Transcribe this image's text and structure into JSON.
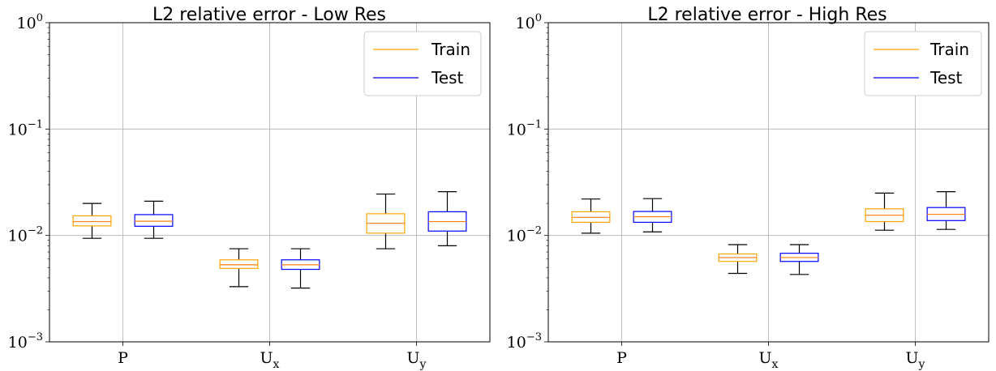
{
  "chart_data": [
    {
      "type": "box",
      "title": "L2 relative error - Low Res",
      "categories": [
        "P",
        "U_x",
        "U_y"
      ],
      "scale": "log",
      "ylim": [
        0.001,
        1
      ],
      "y_ticks": [
        {
          "value": 0.001,
          "base": "10",
          "exp": "−3"
        },
        {
          "value": 0.01,
          "base": "10",
          "exp": "−2"
        },
        {
          "value": 0.1,
          "base": "10",
          "exp": "−1"
        },
        {
          "value": 1,
          "base": "10",
          "exp": "0"
        }
      ],
      "grid": true,
      "legend_position": "top-right",
      "series": [
        {
          "name": "Train",
          "color": "#ffa500",
          "boxes": [
            {
              "whislo": 0.0094,
              "q1": 0.0123,
              "med": 0.0135,
              "q3": 0.0153,
              "whishi": 0.02
            },
            {
              "whislo": 0.0033,
              "q1": 0.0049,
              "med": 0.0053,
              "q3": 0.0059,
              "whishi": 0.0075
            },
            {
              "whislo": 0.0075,
              "q1": 0.0105,
              "med": 0.013,
              "q3": 0.016,
              "whishi": 0.0245
            }
          ]
        },
        {
          "name": "Test",
          "color": "#0000ff",
          "boxes": [
            {
              "whislo": 0.0094,
              "q1": 0.0122,
              "med": 0.0136,
              "q3": 0.0157,
              "whishi": 0.021
            },
            {
              "whislo": 0.0032,
              "q1": 0.0048,
              "med": 0.0053,
              "q3": 0.0059,
              "whishi": 0.0075
            },
            {
              "whislo": 0.008,
              "q1": 0.011,
              "med": 0.0135,
              "q3": 0.0167,
              "whishi": 0.0258
            }
          ]
        }
      ]
    },
    {
      "type": "box",
      "title": "L2 relative error - High Res",
      "categories": [
        "P",
        "U_x",
        "U_y"
      ],
      "scale": "log",
      "ylim": [
        0.001,
        1
      ],
      "y_ticks": [
        {
          "value": 0.001,
          "base": "10",
          "exp": "−3"
        },
        {
          "value": 0.01,
          "base": "10",
          "exp": "−2"
        },
        {
          "value": 0.1,
          "base": "10",
          "exp": "−1"
        },
        {
          "value": 1,
          "base": "10",
          "exp": "0"
        }
      ],
      "grid": true,
      "legend_position": "top-right",
      "series": [
        {
          "name": "Train",
          "color": "#ffa500",
          "boxes": [
            {
              "whislo": 0.0105,
              "q1": 0.0133,
              "med": 0.0148,
              "q3": 0.0167,
              "whishi": 0.022
            },
            {
              "whislo": 0.0044,
              "q1": 0.0057,
              "med": 0.0062,
              "q3": 0.0067,
              "whishi": 0.0082
            },
            {
              "whislo": 0.0112,
              "q1": 0.0135,
              "med": 0.0155,
              "q3": 0.0178,
              "whishi": 0.025
            }
          ]
        },
        {
          "name": "Test",
          "color": "#0000ff",
          "boxes": [
            {
              "whislo": 0.0108,
              "q1": 0.0133,
              "med": 0.015,
              "q3": 0.0168,
              "whishi": 0.0222
            },
            {
              "whislo": 0.0043,
              "q1": 0.0057,
              "med": 0.0062,
              "q3": 0.0068,
              "whishi": 0.0082
            },
            {
              "whislo": 0.0114,
              "q1": 0.0138,
              "med": 0.0158,
              "q3": 0.0183,
              "whishi": 0.0258
            }
          ]
        }
      ]
    }
  ]
}
